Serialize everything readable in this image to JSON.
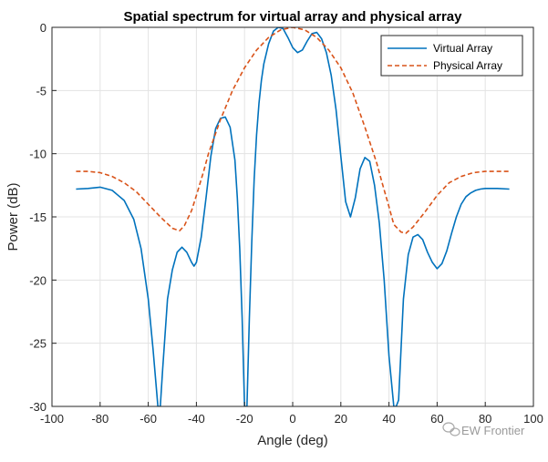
{
  "chart_data": {
    "type": "line",
    "title": "Spatial spectrum for virtual array and physical array",
    "xlabel": "Angle (deg)",
    "ylabel": "Power (dB)",
    "xlim": [
      -100,
      100
    ],
    "ylim": [
      -30,
      0
    ],
    "xticks": [
      -100,
      -80,
      -60,
      -40,
      -20,
      0,
      20,
      40,
      60,
      80,
      100
    ],
    "yticks": [
      0,
      -5,
      -10,
      -15,
      -20,
      -25,
      -30
    ],
    "grid": true,
    "legend_position": "top-right",
    "series": [
      {
        "name": "Virtual Array",
        "color": "#0072BD",
        "style": "solid",
        "x": [
          -90,
          -85,
          -80,
          -75,
          -70,
          -66,
          -63,
          -60,
          -58,
          -56,
          -55,
          -54,
          -52,
          -50,
          -48,
          -46,
          -44,
          -42,
          -41,
          -40,
          -38,
          -36,
          -34,
          -32,
          -30,
          -28,
          -26,
          -24,
          -23,
          -22,
          -21,
          -20,
          -19,
          -18,
          -17,
          -16,
          -15,
          -14,
          -13,
          -12,
          -10,
          -8,
          -6,
          -4,
          -2,
          0,
          2,
          4,
          6,
          8,
          10,
          12,
          14,
          16,
          18,
          20,
          22,
          24,
          26,
          28,
          30,
          32,
          34,
          36,
          38,
          40,
          42,
          43,
          44,
          45,
          46,
          48,
          50,
          52,
          54,
          56,
          58,
          60,
          62,
          64,
          66,
          68,
          70,
          72,
          74,
          76,
          78,
          80,
          85,
          90
        ],
        "y": [
          -12.8,
          -12.75,
          -12.65,
          -12.9,
          -13.7,
          -15.2,
          -17.5,
          -21.5,
          -25.5,
          -30,
          -30,
          -27,
          -21.5,
          -19.2,
          -17.8,
          -17.4,
          -17.8,
          -18.6,
          -18.9,
          -18.6,
          -16.6,
          -13.5,
          -10.2,
          -8.0,
          -7.2,
          -7.1,
          -7.9,
          -10.5,
          -13.5,
          -17.5,
          -23,
          -30,
          -30,
          -23,
          -17.0,
          -12.0,
          -8.5,
          -6.0,
          -4.2,
          -2.9,
          -1.3,
          -0.3,
          0,
          -0.1,
          -0.8,
          -1.6,
          -2.0,
          -1.8,
          -1.1,
          -0.5,
          -0.4,
          -0.9,
          -2.0,
          -3.8,
          -6.5,
          -10.2,
          -13.8,
          -15.0,
          -13.5,
          -11.2,
          -10.3,
          -10.6,
          -12.5,
          -15.5,
          -20.0,
          -26.0,
          -30,
          -30,
          -29.5,
          -25.5,
          -21.5,
          -18.0,
          -16.6,
          -16.4,
          -16.8,
          -17.8,
          -18.6,
          -19.1,
          -18.7,
          -17.7,
          -16.3,
          -15.0,
          -14.0,
          -13.4,
          -13.1,
          -12.9,
          -12.8,
          -12.75,
          -12.75,
          -12.8
        ]
      },
      {
        "name": "Physical Array",
        "color": "#D95319",
        "style": "dashed",
        "x": [
          -90,
          -85,
          -80,
          -75,
          -70,
          -65,
          -60,
          -55,
          -50,
          -47,
          -45,
          -42,
          -40,
          -37,
          -35,
          -30,
          -25,
          -20,
          -15,
          -10,
          -5,
          0,
          5,
          10,
          15,
          20,
          25,
          30,
          35,
          37,
          40,
          42,
          45,
          47,
          50,
          55,
          60,
          65,
          70,
          75,
          80,
          85,
          90
        ],
        "y": [
          -11.4,
          -11.4,
          -11.5,
          -11.8,
          -12.3,
          -13.0,
          -14.0,
          -15.0,
          -15.9,
          -16.1,
          -15.7,
          -14.5,
          -13.3,
          -11.4,
          -10.0,
          -7.3,
          -5.0,
          -3.2,
          -1.8,
          -0.8,
          -0.2,
          0,
          -0.2,
          -0.8,
          -1.8,
          -3.2,
          -5.2,
          -7.9,
          -10.8,
          -12.2,
          -14.2,
          -15.6,
          -16.2,
          -16.3,
          -15.8,
          -14.6,
          -13.3,
          -12.3,
          -11.8,
          -11.5,
          -11.4,
          -11.4,
          -11.4
        ]
      }
    ]
  },
  "watermark": "EW Frontier"
}
